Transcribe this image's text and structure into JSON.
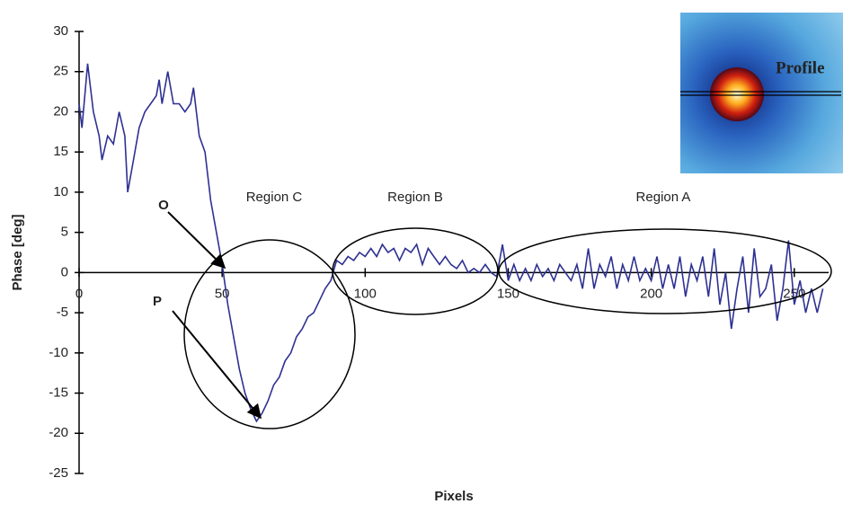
{
  "chart_data": {
    "type": "line",
    "xlabel": "Pixels",
    "ylabel": "Phase [deg]",
    "annotations": [
      "Region C",
      "Region B",
      "Region A",
      "O",
      "P",
      "Profile"
    ],
    "color": "#2e3192",
    "xlim": [
      0,
      262
    ],
    "xticks": [
      0,
      50,
      100,
      150,
      200,
      250
    ],
    "ylim": [
      -25,
      30
    ],
    "yticks": [
      -25,
      -20,
      -15,
      -10,
      -5,
      0,
      5,
      10,
      15,
      20,
      25,
      30
    ],
    "x": [
      0,
      1,
      3,
      5,
      7,
      8,
      10,
      12,
      14,
      16,
      17,
      19,
      21,
      23,
      25,
      27,
      28,
      29,
      31,
      33,
      35,
      37,
      39,
      40,
      42,
      44,
      46,
      48,
      50,
      52,
      54,
      56,
      58,
      60,
      62,
      64,
      66,
      68,
      70,
      72,
      74,
      76,
      78,
      80,
      82,
      84,
      86,
      88,
      90,
      92,
      94,
      96,
      98,
      100,
      102,
      104,
      106,
      108,
      110,
      112,
      114,
      116,
      118,
      120,
      122,
      124,
      126,
      128,
      130,
      132,
      134,
      136,
      138,
      140,
      142,
      144,
      146,
      148,
      150,
      152,
      154,
      156,
      158,
      160,
      162,
      164,
      166,
      168,
      170,
      172,
      174,
      176,
      178,
      180,
      182,
      184,
      186,
      188,
      190,
      192,
      194,
      196,
      198,
      200,
      202,
      204,
      206,
      208,
      210,
      212,
      214,
      216,
      218,
      220,
      222,
      224,
      226,
      228,
      230,
      232,
      234,
      236,
      238,
      240,
      242,
      244,
      246,
      248,
      250,
      252,
      254,
      256,
      258,
      260
    ],
    "values": [
      21,
      18,
      26,
      20,
      17,
      14,
      17,
      16,
      20,
      17,
      10,
      14,
      18,
      20,
      21,
      22,
      24,
      21,
      25,
      21,
      21,
      20,
      21,
      23,
      17,
      15,
      9,
      5,
      1,
      -4,
      -8,
      -12,
      -15,
      -17,
      -18.5,
      -17.5,
      -16,
      -14,
      -13,
      -11,
      -10,
      -8,
      -7,
      -5.5,
      -5,
      -3.5,
      -2,
      -1,
      1.5,
      1,
      2,
      1.5,
      2.5,
      2,
      3,
      2,
      3.5,
      2.5,
      3,
      1.5,
      3,
      2.5,
      3.5,
      1,
      3,
      2,
      1,
      2,
      1,
      0.5,
      1.5,
      0,
      0.5,
      0,
      1,
      0,
      -0.5,
      3.5,
      -1,
      1,
      -1,
      0.5,
      -1,
      1,
      -0.5,
      0.5,
      -1,
      1,
      0,
      -1,
      1,
      -2,
      3,
      -2,
      1,
      -0.5,
      2,
      -2,
      1,
      -1,
      2,
      -1,
      0.5,
      -1,
      2,
      -2,
      1,
      -2,
      2,
      -3,
      1,
      -1,
      2,
      -3,
      3,
      -4,
      0,
      -7,
      -2,
      2,
      -5,
      3,
      -3,
      -2,
      1,
      -6,
      -2,
      4,
      -4,
      -1,
      -5,
      -2,
      -5,
      -2
    ]
  }
}
